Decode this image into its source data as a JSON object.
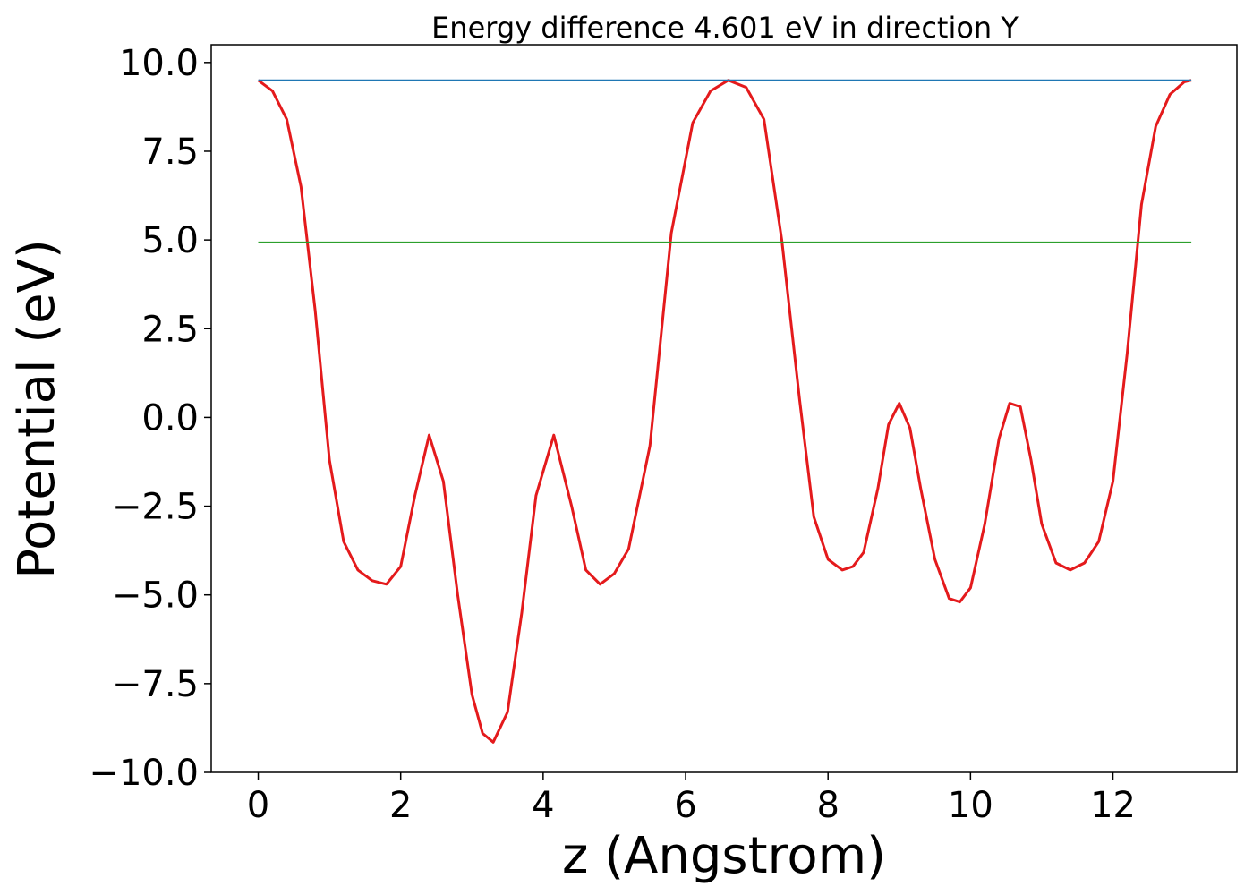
{
  "chart_data": {
    "type": "line",
    "title": "Energy difference 4.601 eV in direction Y",
    "xlabel": "z (Angstrom)",
    "ylabel": "Potential (eV)",
    "xlim": [
      -0.66,
      13.74
    ],
    "ylim": [
      -10.0,
      10.5
    ],
    "xticks": [
      0,
      2,
      4,
      6,
      8,
      10,
      12
    ],
    "xtick_labels": [
      "0",
      "2",
      "4",
      "6",
      "8",
      "10",
      "12"
    ],
    "yticks": [
      -10.0,
      -7.5,
      -5.0,
      -2.5,
      0.0,
      2.5,
      5.0,
      7.5,
      10.0
    ],
    "ytick_labels": [
      "−10.0",
      "−7.5",
      "−5.0",
      "−2.5",
      "0.0",
      "2.5",
      "5.0",
      "7.5",
      "10.0"
    ],
    "grid": false,
    "series": [
      {
        "color": "#e41a1c",
        "x": [
          0.0,
          0.2,
          0.4,
          0.6,
          0.8,
          1.0,
          1.2,
          1.4,
          1.6,
          1.8,
          2.0,
          2.2,
          2.4,
          2.6,
          2.8,
          3.0,
          3.15,
          3.3,
          3.5,
          3.7,
          3.9,
          4.15,
          4.4,
          4.6,
          4.8,
          5.0,
          5.2,
          5.5,
          5.8,
          6.1,
          6.35,
          6.6,
          6.85,
          7.1,
          7.35,
          7.6,
          7.8,
          8.0,
          8.2,
          8.35,
          8.5,
          8.7,
          8.85,
          9.0,
          9.15,
          9.3,
          9.5,
          9.7,
          9.85,
          10.0,
          10.2,
          10.4,
          10.55,
          10.7,
          10.85,
          11.0,
          11.2,
          11.4,
          11.6,
          11.8,
          12.0,
          12.2,
          12.4,
          12.6,
          12.8,
          13.0,
          13.1
        ],
        "y": [
          9.5,
          9.2,
          8.4,
          6.5,
          3.0,
          -1.2,
          -3.5,
          -4.3,
          -4.6,
          -4.7,
          -4.2,
          -2.2,
          -0.5,
          -1.8,
          -5.0,
          -7.8,
          -8.9,
          -9.15,
          -8.3,
          -5.5,
          -2.2,
          -0.5,
          -2.5,
          -4.3,
          -4.7,
          -4.4,
          -3.7,
          -0.8,
          5.2,
          8.3,
          9.2,
          9.5,
          9.3,
          8.4,
          5.0,
          0.5,
          -2.8,
          -4.0,
          -4.3,
          -4.2,
          -3.8,
          -2.0,
          -0.2,
          0.4,
          -0.3,
          -2.0,
          -4.0,
          -5.1,
          -5.2,
          -4.8,
          -3.0,
          -0.6,
          0.4,
          0.3,
          -1.2,
          -3.0,
          -4.1,
          -4.3,
          -4.1,
          -3.5,
          -1.8,
          1.8,
          6.0,
          8.2,
          9.1,
          9.45,
          9.5
        ]
      },
      {
        "color": "#1f77b4",
        "x": [
          0.0,
          13.1
        ],
        "y": [
          9.5,
          9.5
        ]
      },
      {
        "color": "#2ca02c",
        "x": [
          0.0,
          13.1
        ],
        "y": [
          4.93,
          4.93
        ]
      }
    ]
  }
}
